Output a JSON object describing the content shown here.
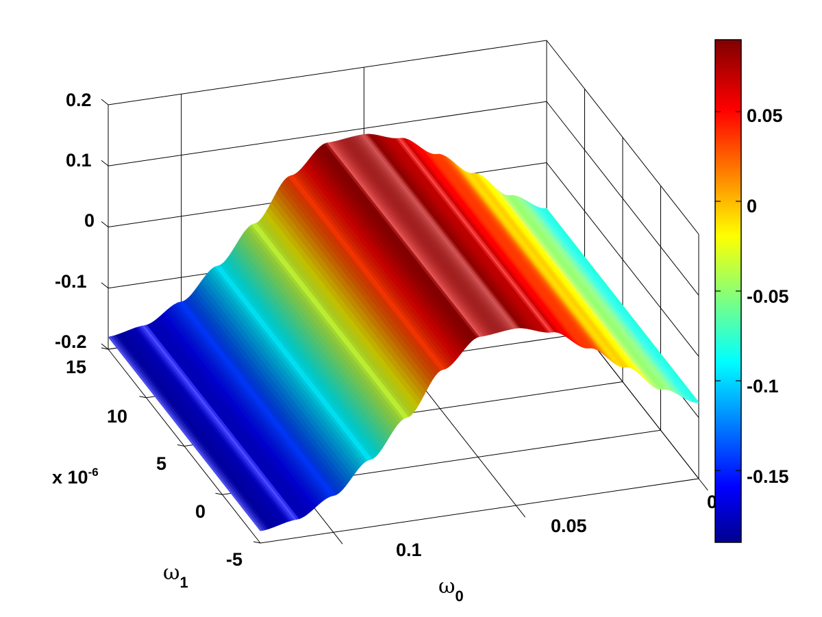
{
  "chart_data": {
    "type": "surface",
    "colormap": "jet",
    "x_axis": {
      "label": "ω",
      "label_sub": "0",
      "ticks": [
        "0.1",
        "0.05",
        "0"
      ],
      "range": [
        0.12,
        0
      ]
    },
    "y_axis": {
      "label": "ω",
      "label_sub": "1",
      "ticks": [
        "-5",
        "0",
        "5",
        "10",
        "15"
      ],
      "range": [
        -5,
        15
      ],
      "multiplier": "x 10",
      "multiplier_exp": "-6"
    },
    "z_axis": {
      "ticks": [
        "-0.2",
        "-0.1",
        "0",
        "0.1",
        "0.2"
      ],
      "range": [
        -0.2,
        0.2
      ]
    },
    "colorbar": {
      "ticks": [
        "0.05",
        "0",
        "-0.05",
        "-0.1",
        "-0.15"
      ],
      "range": [
        -0.19,
        0.09
      ]
    },
    "surface": {
      "omega0": [
        0.12,
        0.11,
        0.1,
        0.09,
        0.08,
        0.07,
        0.06,
        0.05,
        0.04,
        0.03,
        0.02,
        0.01,
        0.0
      ],
      "z": [
        -0.18,
        -0.17,
        -0.14,
        -0.09,
        -0.03,
        0.04,
        0.085,
        0.09,
        0.075,
        0.04,
        0.0,
        -0.045,
        -0.075
      ],
      "constant_in_omega1": true
    },
    "grid": true
  }
}
